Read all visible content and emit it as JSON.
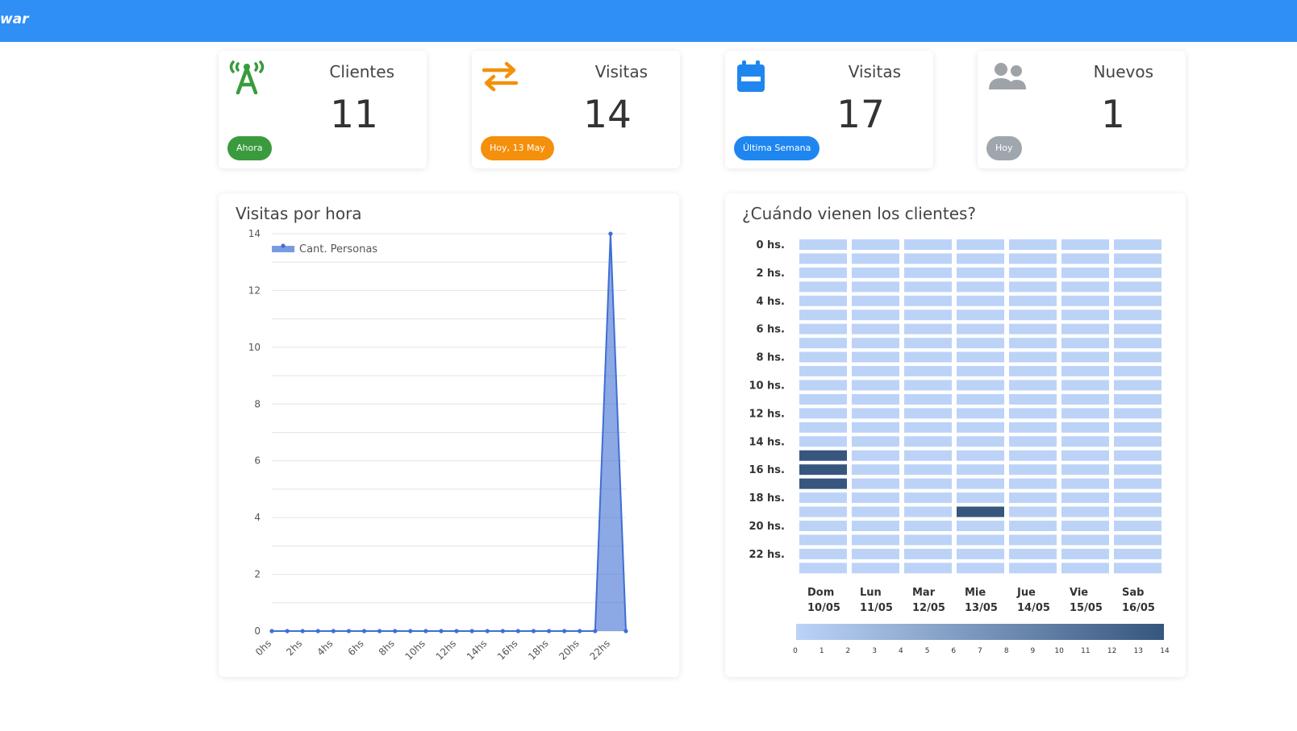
{
  "header": {
    "brand": "war"
  },
  "cards": [
    {
      "title": "Clientes",
      "value": "11",
      "badge": "Ahora",
      "badge_color": "#3a9b3e",
      "icon": "antenna-icon",
      "icon_color": "#3a9b3e"
    },
    {
      "title": "Visitas",
      "value": "14",
      "badge": "Hoy, 13 May",
      "badge_color": "#f4900c",
      "icon": "swap-arrows-icon",
      "icon_color": "#f4900c"
    },
    {
      "title": "Visitas",
      "value": "17",
      "badge": "Última Semana",
      "badge_color": "#1f86f0",
      "icon": "calendar-icon",
      "icon_color": "#1f86f0"
    },
    {
      "title": "Nuevos",
      "value": "1",
      "badge": "Hoy",
      "badge_color": "#a0a6ad",
      "icon": "users-icon",
      "icon_color": "#9ea3a8"
    }
  ],
  "chart_data": [
    {
      "type": "area",
      "title": "Visitas por hora",
      "x": [
        "0hs",
        "1hs",
        "2hs",
        "3hs",
        "4hs",
        "5hs",
        "6hs",
        "7hs",
        "8hs",
        "9hs",
        "10hs",
        "11hs",
        "12hs",
        "13hs",
        "14hs",
        "15hs",
        "16hs",
        "17hs",
        "18hs",
        "19hs",
        "20hs",
        "21hs",
        "22hs",
        "23hs"
      ],
      "x_tick_labels": [
        "0hs",
        "2hs",
        "4hs",
        "6hs",
        "8hs",
        "10hs",
        "12hs",
        "14hs",
        "16hs",
        "18hs",
        "20hs",
        "22hs"
      ],
      "series": [
        {
          "name": "Cant. Personas",
          "values": [
            0,
            0,
            0,
            0,
            0,
            0,
            0,
            0,
            0,
            0,
            0,
            0,
            0,
            0,
            0,
            0,
            0,
            0,
            0,
            0,
            0,
            0,
            14,
            0
          ],
          "color": "#3f6fd4"
        }
      ],
      "ylim": [
        0,
        14
      ],
      "y_ticks": [
        0,
        2,
        4,
        6,
        8,
        10,
        12,
        14
      ],
      "grid": true,
      "legend": "top-left"
    },
    {
      "type": "heatmap",
      "title": "¿Cuándo vienen los clientes?",
      "row_labels": [
        "0 hs.",
        "2 hs.",
        "4 hs.",
        "6 hs.",
        "8 hs.",
        "10 hs.",
        "12 hs.",
        "14 hs.",
        "16 hs.",
        "18 hs.",
        "20 hs.",
        "22 hs."
      ],
      "columns": [
        {
          "day": "Dom",
          "date": "10/05"
        },
        {
          "day": "Lun",
          "date": "11/05"
        },
        {
          "day": "Mar",
          "date": "12/05"
        },
        {
          "day": "Mie",
          "date": "13/05"
        },
        {
          "day": "Jue",
          "date": "14/05"
        },
        {
          "day": "Vie",
          "date": "15/05"
        },
        {
          "day": "Sab",
          "date": "16/05"
        }
      ],
      "rows": 24,
      "nonzero_cells": [
        {
          "col": 0,
          "hour": 15,
          "value": 14
        },
        {
          "col": 0,
          "hour": 16,
          "value": 14
        },
        {
          "col": 0,
          "hour": 17,
          "value": 14
        },
        {
          "col": 3,
          "hour": 19,
          "value": 14
        }
      ],
      "scale_min": 0,
      "scale_max": 14,
      "scale_ticks": [
        "0",
        "1",
        "2",
        "3",
        "4",
        "5",
        "6",
        "7",
        "8",
        "9",
        "10",
        "11",
        "12",
        "13",
        "14"
      ],
      "color_low": "#bcd3f7",
      "color_high": "#36567e"
    }
  ]
}
